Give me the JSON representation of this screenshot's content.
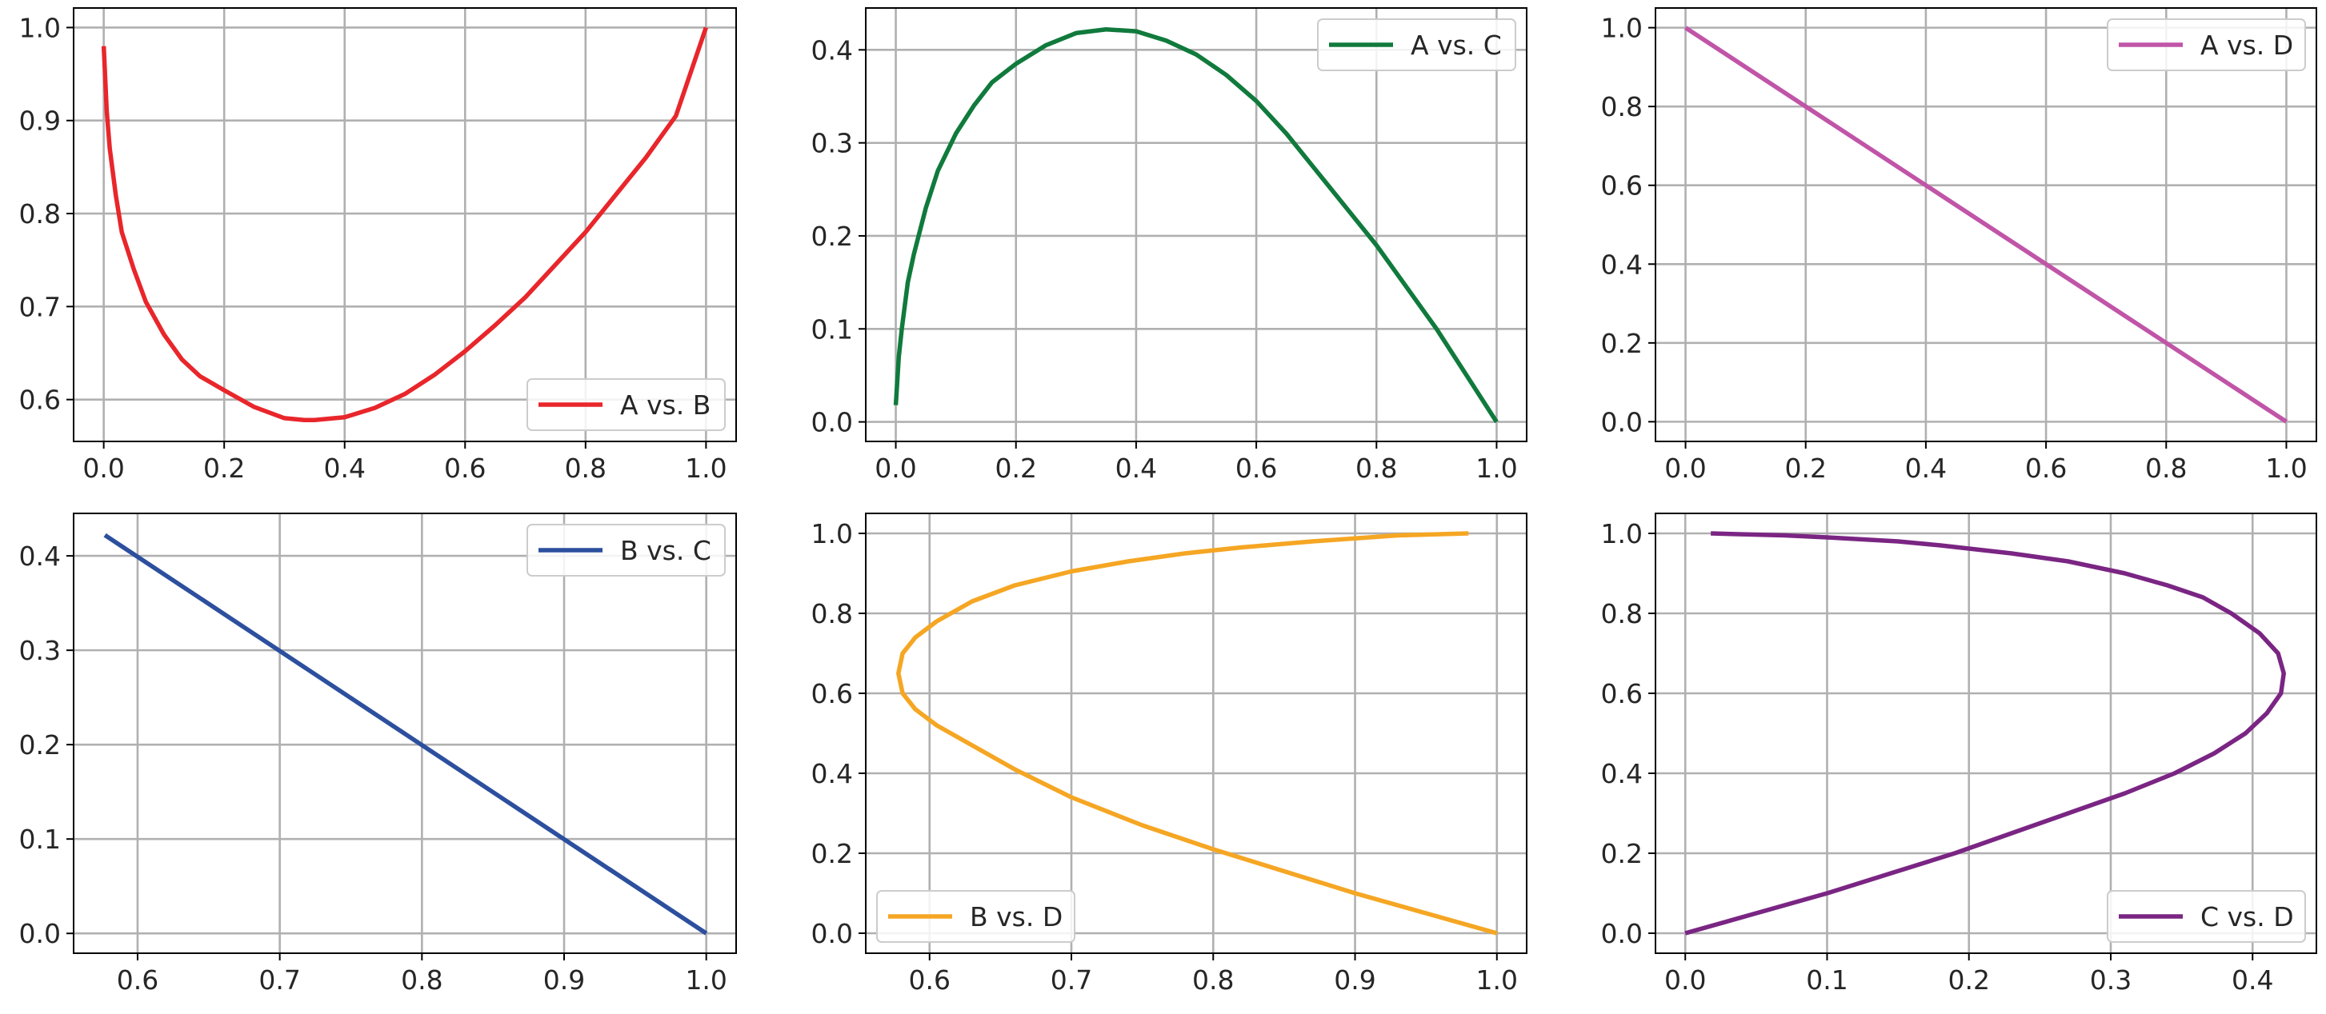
{
  "chart_data": [
    {
      "type": "line",
      "title": "",
      "xlabel": "",
      "ylabel": "",
      "xlim": [
        -0.05,
        1.05
      ],
      "ylim": [
        0.555,
        1.021
      ],
      "xticks": [
        "0.0",
        "0.2",
        "0.4",
        "0.6",
        "0.8",
        "1.0"
      ],
      "yticks": [
        "0.6",
        "0.7",
        "0.8",
        "0.9",
        "1.0"
      ],
      "grid": true,
      "legend_loc": "lower-right",
      "series": [
        {
          "name": "A vs. B",
          "color": "#e8262b",
          "x": [
            0.0,
            0.005,
            0.01,
            0.02,
            0.03,
            0.05,
            0.07,
            0.1,
            0.13,
            0.16,
            0.2,
            0.25,
            0.3,
            0.333,
            0.35,
            0.4,
            0.45,
            0.5,
            0.55,
            0.6,
            0.65,
            0.7,
            0.75,
            0.8,
            0.85,
            0.9,
            0.95,
            1.0
          ],
          "y": [
            0.98,
            0.91,
            0.87,
            0.82,
            0.78,
            0.74,
            0.705,
            0.67,
            0.643,
            0.625,
            0.61,
            0.592,
            0.58,
            0.578,
            0.578,
            0.581,
            0.591,
            0.606,
            0.627,
            0.652,
            0.68,
            0.71,
            0.745,
            0.78,
            0.82,
            0.86,
            0.905,
            1.0
          ]
        }
      ]
    },
    {
      "type": "line",
      "title": "",
      "xlabel": "",
      "ylabel": "",
      "xlim": [
        -0.05,
        1.05
      ],
      "ylim": [
        -0.021,
        0.445
      ],
      "xticks": [
        "0.0",
        "0.2",
        "0.4",
        "0.6",
        "0.8",
        "1.0"
      ],
      "yticks": [
        "0.0",
        "0.1",
        "0.2",
        "0.3",
        "0.4"
      ],
      "grid": true,
      "legend_loc": "upper-right",
      "series": [
        {
          "name": "A vs. C",
          "color": "#107a3c",
          "x": [
            0.0,
            0.005,
            0.01,
            0.02,
            0.03,
            0.05,
            0.07,
            0.1,
            0.13,
            0.16,
            0.2,
            0.25,
            0.3,
            0.35,
            0.4,
            0.45,
            0.5,
            0.55,
            0.6,
            0.65,
            0.7,
            0.75,
            0.8,
            0.85,
            0.9,
            0.95,
            1.0
          ],
          "y": [
            0.018,
            0.07,
            0.1,
            0.15,
            0.18,
            0.23,
            0.27,
            0.31,
            0.34,
            0.365,
            0.385,
            0.405,
            0.418,
            0.422,
            0.42,
            0.41,
            0.395,
            0.373,
            0.345,
            0.31,
            0.27,
            0.23,
            0.19,
            0.145,
            0.1,
            0.05,
            0.0
          ]
        }
      ]
    },
    {
      "type": "line",
      "title": "",
      "xlabel": "",
      "ylabel": "",
      "xlim": [
        -0.05,
        1.05
      ],
      "ylim": [
        -0.05,
        1.05
      ],
      "xticks": [
        "0.0",
        "0.2",
        "0.4",
        "0.6",
        "0.8",
        "1.0"
      ],
      "yticks": [
        "0.0",
        "0.2",
        "0.4",
        "0.6",
        "0.8",
        "1.0"
      ],
      "grid": true,
      "legend_loc": "upper-right",
      "series": [
        {
          "name": "A vs. D",
          "color": "#c055a8",
          "x": [
            0.0,
            1.0
          ],
          "y": [
            1.0,
            0.0
          ]
        }
      ]
    },
    {
      "type": "line",
      "title": "",
      "xlabel": "",
      "ylabel": "",
      "xlim": [
        0.555,
        1.021
      ],
      "ylim": [
        -0.021,
        0.445
      ],
      "xticks": [
        "0.6",
        "0.7",
        "0.8",
        "0.9",
        "1.0"
      ],
      "yticks": [
        "0.0",
        "0.1",
        "0.2",
        "0.3",
        "0.4"
      ],
      "grid": true,
      "legend_loc": "upper-right",
      "series": [
        {
          "name": "B vs. C",
          "color": "#2c4f9e",
          "x": [
            0.577,
            1.0
          ],
          "y": [
            0.422,
            0.0
          ]
        }
      ]
    },
    {
      "type": "line",
      "title": "",
      "xlabel": "",
      "ylabel": "",
      "xlim": [
        0.555,
        1.021
      ],
      "ylim": [
        -0.05,
        1.05
      ],
      "xticks": [
        "0.6",
        "0.7",
        "0.8",
        "0.9",
        "1.0"
      ],
      "yticks": [
        "0.0",
        "0.2",
        "0.4",
        "0.6",
        "0.8",
        "1.0"
      ],
      "grid": true,
      "legend_loc": "lower-left",
      "series": [
        {
          "name": "B vs. D",
          "color": "#f5a623",
          "x": [
            0.98,
            0.93,
            0.87,
            0.82,
            0.78,
            0.74,
            0.7,
            0.66,
            0.63,
            0.605,
            0.59,
            0.581,
            0.578,
            0.581,
            0.59,
            0.605,
            0.63,
            0.66,
            0.7,
            0.75,
            0.8,
            0.85,
            0.9,
            0.95,
            1.0
          ],
          "y": [
            1.0,
            0.995,
            0.98,
            0.965,
            0.95,
            0.93,
            0.905,
            0.87,
            0.83,
            0.78,
            0.74,
            0.7,
            0.65,
            0.6,
            0.56,
            0.52,
            0.47,
            0.41,
            0.34,
            0.27,
            0.21,
            0.155,
            0.1,
            0.05,
            0.0
          ]
        }
      ]
    },
    {
      "type": "line",
      "title": "",
      "xlabel": "",
      "ylabel": "",
      "xlim": [
        -0.021,
        0.445
      ],
      "ylim": [
        -0.05,
        1.05
      ],
      "xticks": [
        "0.0",
        "0.1",
        "0.2",
        "0.3",
        "0.4"
      ],
      "yticks": [
        "0.0",
        "0.2",
        "0.4",
        "0.6",
        "0.8",
        "1.0"
      ],
      "grid": true,
      "legend_loc": "lower-right",
      "series": [
        {
          "name": "C vs. D",
          "color": "#7a2583",
          "x": [
            0.018,
            0.07,
            0.1,
            0.15,
            0.18,
            0.23,
            0.27,
            0.31,
            0.34,
            0.365,
            0.385,
            0.405,
            0.418,
            0.422,
            0.42,
            0.41,
            0.395,
            0.373,
            0.345,
            0.31,
            0.27,
            0.23,
            0.19,
            0.145,
            0.1,
            0.05,
            0.0
          ],
          "y": [
            1.0,
            0.995,
            0.99,
            0.98,
            0.97,
            0.95,
            0.93,
            0.9,
            0.87,
            0.84,
            0.8,
            0.75,
            0.7,
            0.65,
            0.6,
            0.55,
            0.5,
            0.45,
            0.4,
            0.35,
            0.3,
            0.25,
            0.2,
            0.15,
            0.1,
            0.05,
            0.0
          ]
        }
      ]
    }
  ]
}
